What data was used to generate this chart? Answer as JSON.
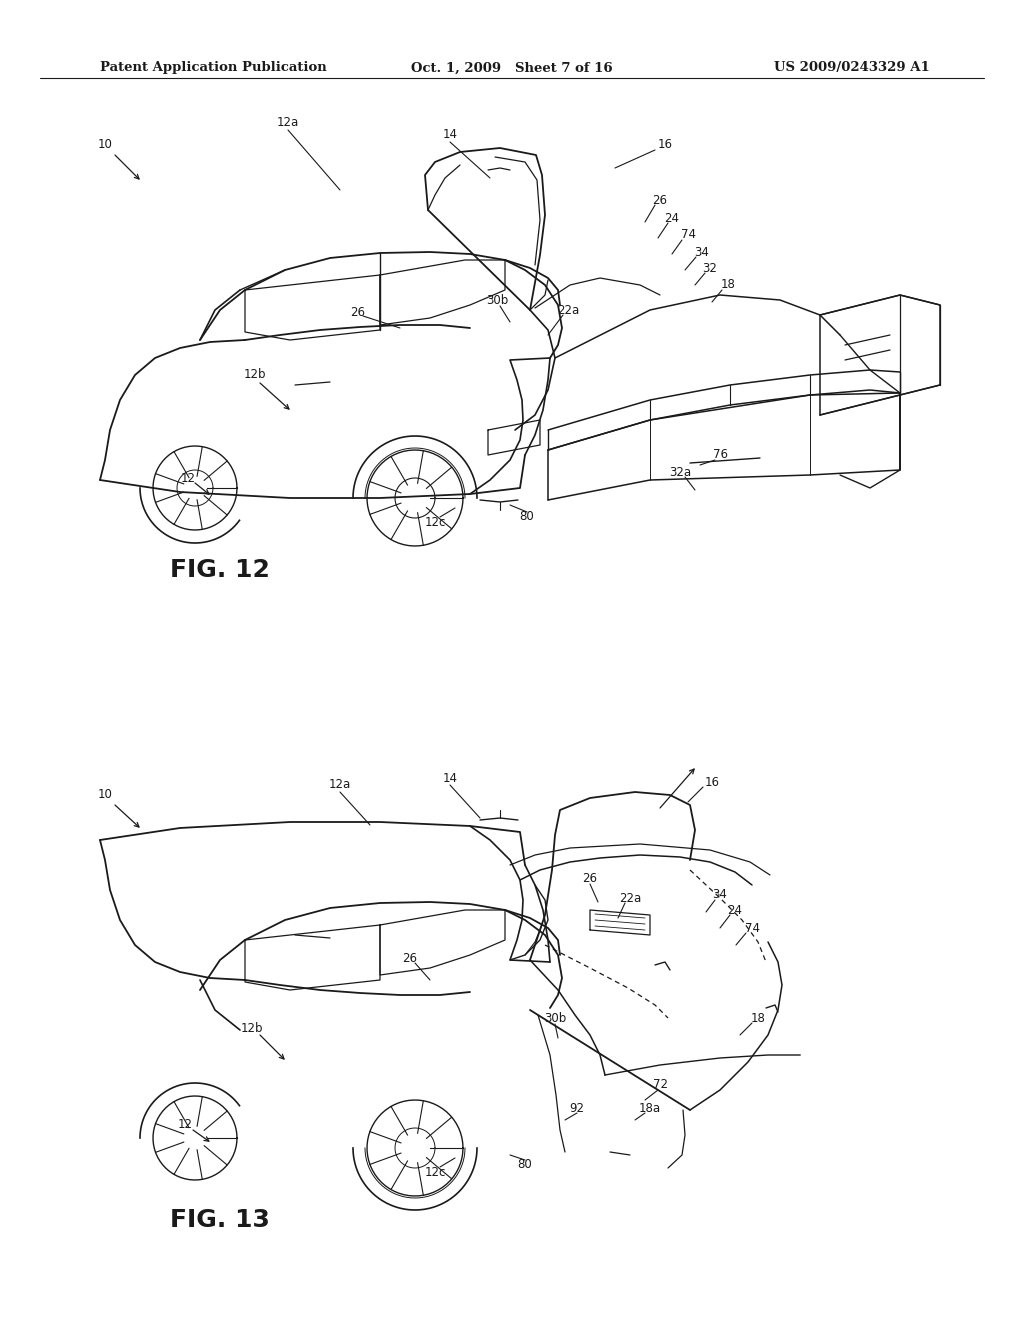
{
  "title_left": "Patent Application Publication",
  "title_mid": "Oct. 1, 2009   Sheet 7 of 16",
  "title_right": "US 2009/0243329 A1",
  "fig12_label": "FIG. 12",
  "fig13_label": "FIG. 13",
  "background_color": "#ffffff",
  "line_color": "#1a1a1a",
  "text_color": "#1a1a1a",
  "header_fontsize": 9.5,
  "fig_label_fontsize": 18,
  "annotation_fontsize": 8.5
}
